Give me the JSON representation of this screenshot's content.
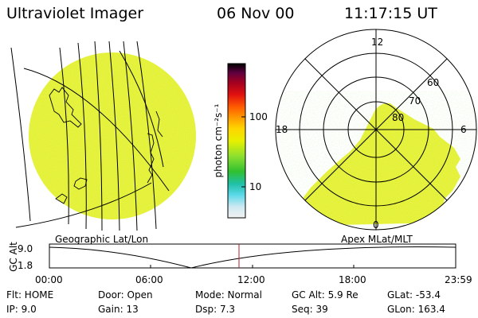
{
  "header": {
    "instrument": "Ultraviolet Imager",
    "date": "06 Nov 00",
    "time": "11:17:15 UT"
  },
  "geo_panel": {
    "label": "Geographic Lat/Lon"
  },
  "polar_panel": {
    "label": "Apex MLat/MLT",
    "mlt_labels": [
      "12",
      "18",
      "6",
      "0"
    ],
    "lat_labels": [
      "60",
      "70",
      "80"
    ]
  },
  "colorbar": {
    "unit_label": "photon cm⁻²s⁻¹",
    "ticks": [
      "100",
      "10"
    ],
    "scale": "log",
    "colors": [
      "#f2f2f2",
      "#cfe9f2",
      "#5ad8e8",
      "#20c0a8",
      "#30c030",
      "#8ee030",
      "#e8f000",
      "#ffd400",
      "#ff9a00",
      "#ff5a00",
      "#e01010",
      "#a00020",
      "#600040",
      "#301040",
      "#000000"
    ]
  },
  "altitude_plot": {
    "ylabel": "GC Alt",
    "yticks": [
      "9.0",
      "1.8"
    ],
    "xticks": [
      "00:00",
      "06:00",
      "12:00",
      "18:00",
      "23:59"
    ],
    "current_time_marker": "11:17:15"
  },
  "info": {
    "flt": "Flt: HOME",
    "ip": "IP:  9.0",
    "door": "Door: Open",
    "gain": "Gain: 13",
    "mode": "Mode: Normal",
    "dsp": "Dsp:     7.3",
    "gcalt": "GC Alt: 5.9 Re",
    "seq": "Seq: 39",
    "glat": "GLat: -53.4",
    "glon": "GLon: 163.4"
  },
  "colors": {
    "aurora": "#e8f23a",
    "marker": "#b02020"
  }
}
